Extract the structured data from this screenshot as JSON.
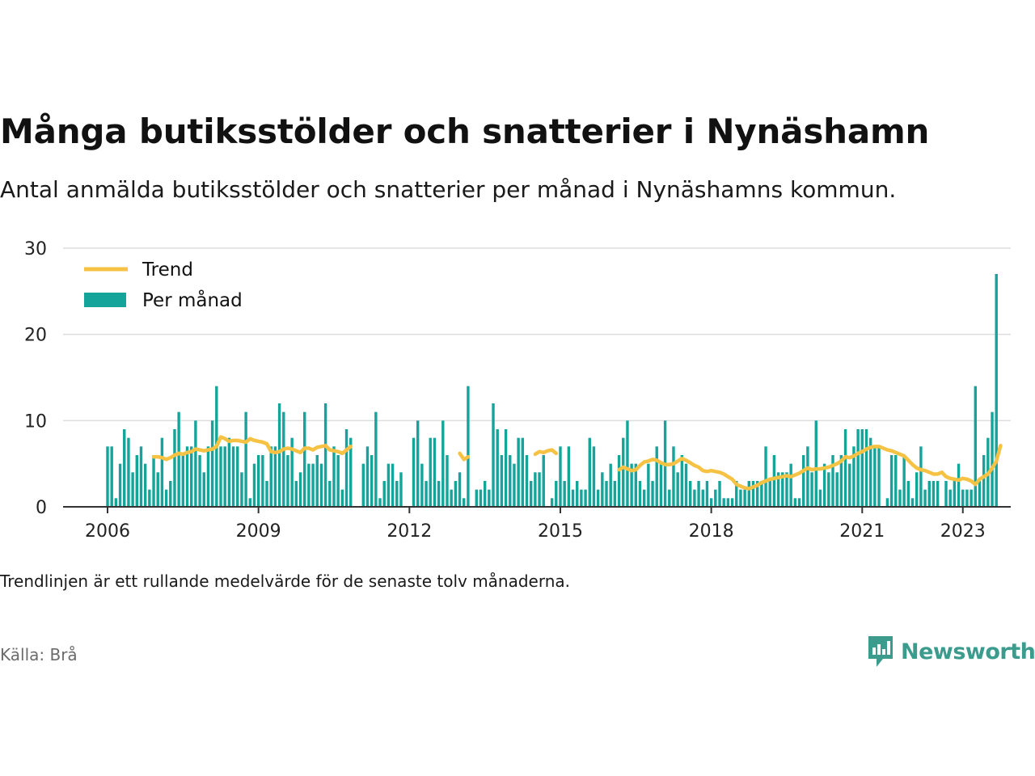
{
  "title": "Många butiksstölder och snatterier i Nynäshamn",
  "subtitle": "Antal anmälda butiksstölder och snatterier per månad i Nynäshamns kommun.",
  "note": "Trendlinjen är ett rullande medelvärde för de senaste tolv månaderna.",
  "source": "Källa: Brå",
  "brand": "Newsworthy",
  "colors": {
    "bar": "#14a49a",
    "trend": "#f6c244",
    "grid": "#dddddd",
    "axis": "#333333",
    "brand": "#3b9c8e"
  },
  "chart_data": {
    "type": "bar",
    "title": "Många butiksstölder och snatterier i Nynäshamn",
    "start": "2006-01",
    "ylim": [
      0,
      30
    ],
    "yticks": [
      0,
      10,
      20,
      30
    ],
    "xticks": [
      "2006",
      "2009",
      "2012",
      "2015",
      "2018",
      "2021",
      "2023"
    ],
    "grid": true,
    "legend": {
      "position": "top-left",
      "items": [
        "Trend",
        "Per månad"
      ]
    },
    "series": [
      {
        "name": "Per månad",
        "type": "bar",
        "values": [
          7,
          7,
          1,
          5,
          9,
          8,
          4,
          6,
          7,
          5,
          2,
          6,
          4,
          8,
          2,
          3,
          9,
          11,
          6,
          7,
          7,
          10,
          6,
          4,
          7,
          10,
          14,
          7,
          7,
          8,
          7,
          7,
          4,
          11,
          1,
          5,
          6,
          6,
          3,
          7,
          7,
          12,
          11,
          6,
          8,
          3,
          4,
          11,
          5,
          5,
          6,
          5,
          12,
          3,
          7,
          6,
          2,
          9,
          8,
          null,
          null,
          5,
          7,
          6,
          11,
          1,
          3,
          5,
          5,
          3,
          4,
          null,
          null,
          8,
          10,
          5,
          3,
          8,
          8,
          3,
          10,
          6,
          2,
          3,
          4,
          1,
          14,
          null,
          2,
          2,
          3,
          2,
          12,
          9,
          6,
          9,
          6,
          5,
          8,
          8,
          6,
          3,
          4,
          4,
          6,
          null,
          1,
          3,
          7,
          3,
          7,
          2,
          3,
          2,
          2,
          8,
          7,
          2,
          4,
          3,
          5,
          3,
          6,
          8,
          10,
          5,
          5,
          3,
          2,
          5,
          3,
          7,
          5,
          10,
          2,
          7,
          4,
          6,
          5,
          3,
          2,
          3,
          2,
          3,
          1,
          2,
          3,
          1,
          1,
          1,
          3,
          2,
          2,
          3,
          3,
          3,
          3,
          7,
          3,
          6,
          4,
          4,
          4,
          5,
          1,
          1,
          6,
          7,
          4,
          10,
          2,
          5,
          4,
          6,
          4,
          6,
          9,
          5,
          7,
          9,
          9,
          9,
          8,
          7,
          7,
          null,
          1,
          6,
          6,
          2,
          6,
          3,
          1,
          4,
          7,
          2,
          3,
          3,
          3,
          null,
          3,
          2,
          3,
          5,
          2,
          2,
          2,
          14,
          3,
          6,
          8,
          11,
          27
        ]
      },
      {
        "name": "Trend",
        "type": "line",
        "values": [
          null,
          null,
          null,
          null,
          null,
          null,
          null,
          null,
          null,
          null,
          null,
          5.8,
          5.8,
          5.7,
          5.5,
          5.7,
          6,
          6.2,
          6.1,
          6.3,
          6.4,
          6.7,
          6.6,
          6.5,
          6.6,
          6.7,
          7,
          8.1,
          7.9,
          7.6,
          7.7,
          7.7,
          7.6,
          7.5,
          7.9,
          7.7,
          7.6,
          7.5,
          7.3,
          6.4,
          6.3,
          6.4,
          6.7,
          6.8,
          6.7,
          6.5,
          6.3,
          6.8,
          6.8,
          6.6,
          6.9,
          7,
          7.1,
          6.6,
          6.5,
          6.4,
          6.2,
          6.6,
          7,
          null,
          null,
          null,
          null,
          null,
          null,
          null,
          null,
          null,
          null,
          null,
          null,
          null,
          null,
          null,
          null,
          null,
          null,
          null,
          null,
          null,
          null,
          null,
          null,
          null,
          6.2,
          5.5,
          5.8,
          null,
          null,
          null,
          null,
          null,
          null,
          null,
          null,
          null,
          null,
          null,
          null,
          null,
          null,
          null,
          6.1,
          6.4,
          6.3,
          6.5,
          6.6,
          6.2,
          null,
          null,
          null,
          null,
          null,
          null,
          null,
          null,
          null,
          null,
          null,
          null,
          null,
          null,
          4.3,
          4.6,
          4.4,
          4.2,
          4.3,
          4.8,
          5.2,
          5.3,
          5.5,
          5.4,
          5.1,
          4.9,
          4.9,
          5,
          5.3,
          5.6,
          5.4,
          5.1,
          4.8,
          4.6,
          4.2,
          4.1,
          4.2,
          4.1,
          4,
          3.8,
          3.5,
          3.2,
          2.6,
          2.4,
          2.2,
          2.1,
          2.3,
          2.5,
          2.8,
          3,
          3.2,
          3.3,
          3.4,
          3.5,
          3.6,
          3.5,
          3.7,
          3.9,
          4.2,
          4.5,
          4.3,
          4.4,
          4.4,
          4.5,
          4.6,
          4.8,
          5,
          5.3,
          5.8,
          5.7,
          5.9,
          6.2,
          6.4,
          6.7,
          6.9,
          7,
          7,
          6.8,
          6.6,
          6.5,
          6.3,
          6.1,
          5.9,
          5.4,
          4.9,
          4.5,
          4.3,
          4.2,
          4,
          3.8,
          3.8,
          4,
          3.5,
          3.3,
          3.2,
          3.1,
          3.3,
          3.2,
          3,
          2.6,
          3.2,
          3.5,
          3.8,
          4.5,
          5.3,
          7.1
        ]
      }
    ]
  }
}
